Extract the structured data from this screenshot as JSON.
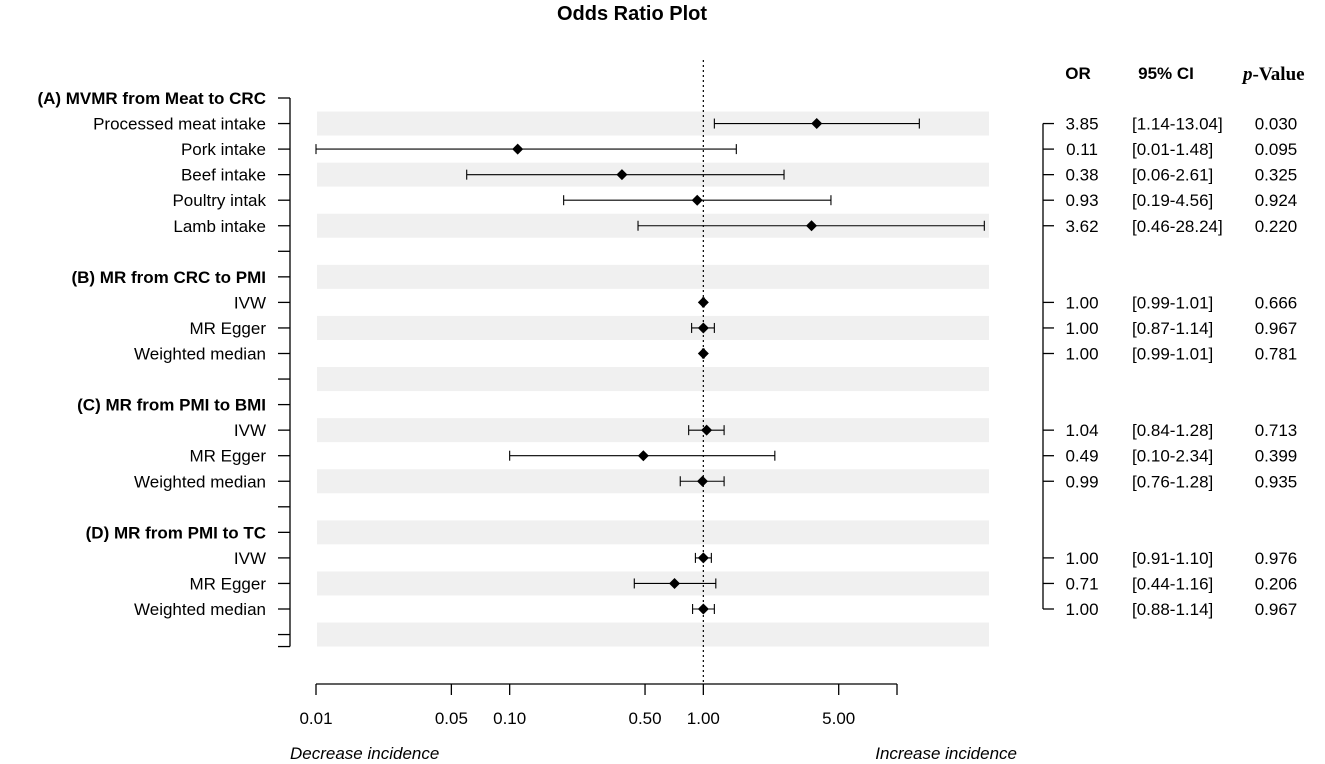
{
  "chart_data": {
    "type": "forest",
    "title": "Odds Ratio Plot",
    "headers": {
      "or": "OR",
      "ci": "95% CI",
      "p_italic": "p",
      "p_rest": "-Value"
    },
    "x_scale": "log",
    "xlim": [
      0.01,
      10
    ],
    "reference_line": 1.0,
    "x_ticks": [
      {
        "value": 0.01,
        "label": "0.01"
      },
      {
        "value": 0.05,
        "label": "0.05"
      },
      {
        "value": 0.1,
        "label": "0.10"
      },
      {
        "value": 0.5,
        "label": "0.50"
      },
      {
        "value": 1.0,
        "label": "1.00"
      },
      {
        "value": 5.0,
        "label": "5.00"
      },
      {
        "value": 10.0,
        "label": ""
      }
    ],
    "left_annotation": "Decrease incidence",
    "right_annotation": "Increase incidence",
    "rows": [
      {
        "kind": "group",
        "label": "(A) MVMR from Meat to CRC"
      },
      {
        "kind": "data",
        "label": "Processed meat intake",
        "or": 3.85,
        "lo": 1.14,
        "hi": 13.04,
        "or_text": "3.85",
        "ci_text": "[1.14-13.04]",
        "p_text": "0.030"
      },
      {
        "kind": "data",
        "label": "Pork intake",
        "or": 0.11,
        "lo": 0.01,
        "hi": 1.48,
        "or_text": "0.11",
        "ci_text": "[0.01-1.48]",
        "p_text": "0.095"
      },
      {
        "kind": "data",
        "label": "Beef intake",
        "or": 0.38,
        "lo": 0.06,
        "hi": 2.61,
        "or_text": "0.38",
        "ci_text": "[0.06-2.61]",
        "p_text": "0.325"
      },
      {
        "kind": "data",
        "label": "Poultry intak",
        "or": 0.93,
        "lo": 0.19,
        "hi": 4.56,
        "or_text": "0.93",
        "ci_text": "[0.19-4.56]",
        "p_text": "0.924"
      },
      {
        "kind": "data",
        "label": "Lamb intake",
        "or": 3.62,
        "lo": 0.46,
        "hi": 28.24,
        "or_text": "3.62",
        "ci_text": "[0.46-28.24]",
        "p_text": "0.220"
      },
      {
        "kind": "blank",
        "label": ""
      },
      {
        "kind": "group",
        "label": "(B) MR from CRC to PMI"
      },
      {
        "kind": "data",
        "label": "IVW",
        "or": 1.0,
        "lo": 0.99,
        "hi": 1.01,
        "or_text": "1.00",
        "ci_text": "[0.99-1.01]",
        "p_text": "0.666"
      },
      {
        "kind": "data",
        "label": "MR Egger",
        "or": 1.0,
        "lo": 0.87,
        "hi": 1.14,
        "or_text": "1.00",
        "ci_text": "[0.87-1.14]",
        "p_text": "0.967"
      },
      {
        "kind": "data",
        "label": "Weighted median",
        "or": 1.0,
        "lo": 0.99,
        "hi": 1.01,
        "or_text": "1.00",
        "ci_text": "[0.99-1.01]",
        "p_text": "0.781"
      },
      {
        "kind": "blank",
        "label": ""
      },
      {
        "kind": "group",
        "label": "(C) MR from PMI to BMI"
      },
      {
        "kind": "data",
        "label": "IVW",
        "or": 1.04,
        "lo": 0.84,
        "hi": 1.28,
        "or_text": "1.04",
        "ci_text": "[0.84-1.28]",
        "p_text": "0.713"
      },
      {
        "kind": "data",
        "label": "MR Egger",
        "or": 0.49,
        "lo": 0.1,
        "hi": 2.34,
        "or_text": "0.49",
        "ci_text": "[0.10-2.34]",
        "p_text": "0.399"
      },
      {
        "kind": "data",
        "label": "Weighted median",
        "or": 0.99,
        "lo": 0.76,
        "hi": 1.28,
        "or_text": "0.99",
        "ci_text": "[0.76-1.28]",
        "p_text": "0.935"
      },
      {
        "kind": "blank",
        "label": ""
      },
      {
        "kind": "group",
        "label": "(D) MR from PMI to TC"
      },
      {
        "kind": "data",
        "label": "IVW",
        "or": 1.0,
        "lo": 0.91,
        "hi": 1.1,
        "or_text": "1.00",
        "ci_text": "[0.91-1.10]",
        "p_text": "0.976"
      },
      {
        "kind": "data",
        "label": "MR Egger",
        "or": 0.71,
        "lo": 0.44,
        "hi": 1.16,
        "or_text": "0.71",
        "ci_text": "[0.44-1.16]",
        "p_text": "0.206"
      },
      {
        "kind": "data",
        "label": "Weighted median",
        "or": 1.0,
        "lo": 0.88,
        "hi": 1.14,
        "or_text": "1.00",
        "ci_text": "[0.88-1.14]",
        "p_text": "0.967"
      },
      {
        "kind": "blank",
        "label": ""
      }
    ]
  }
}
